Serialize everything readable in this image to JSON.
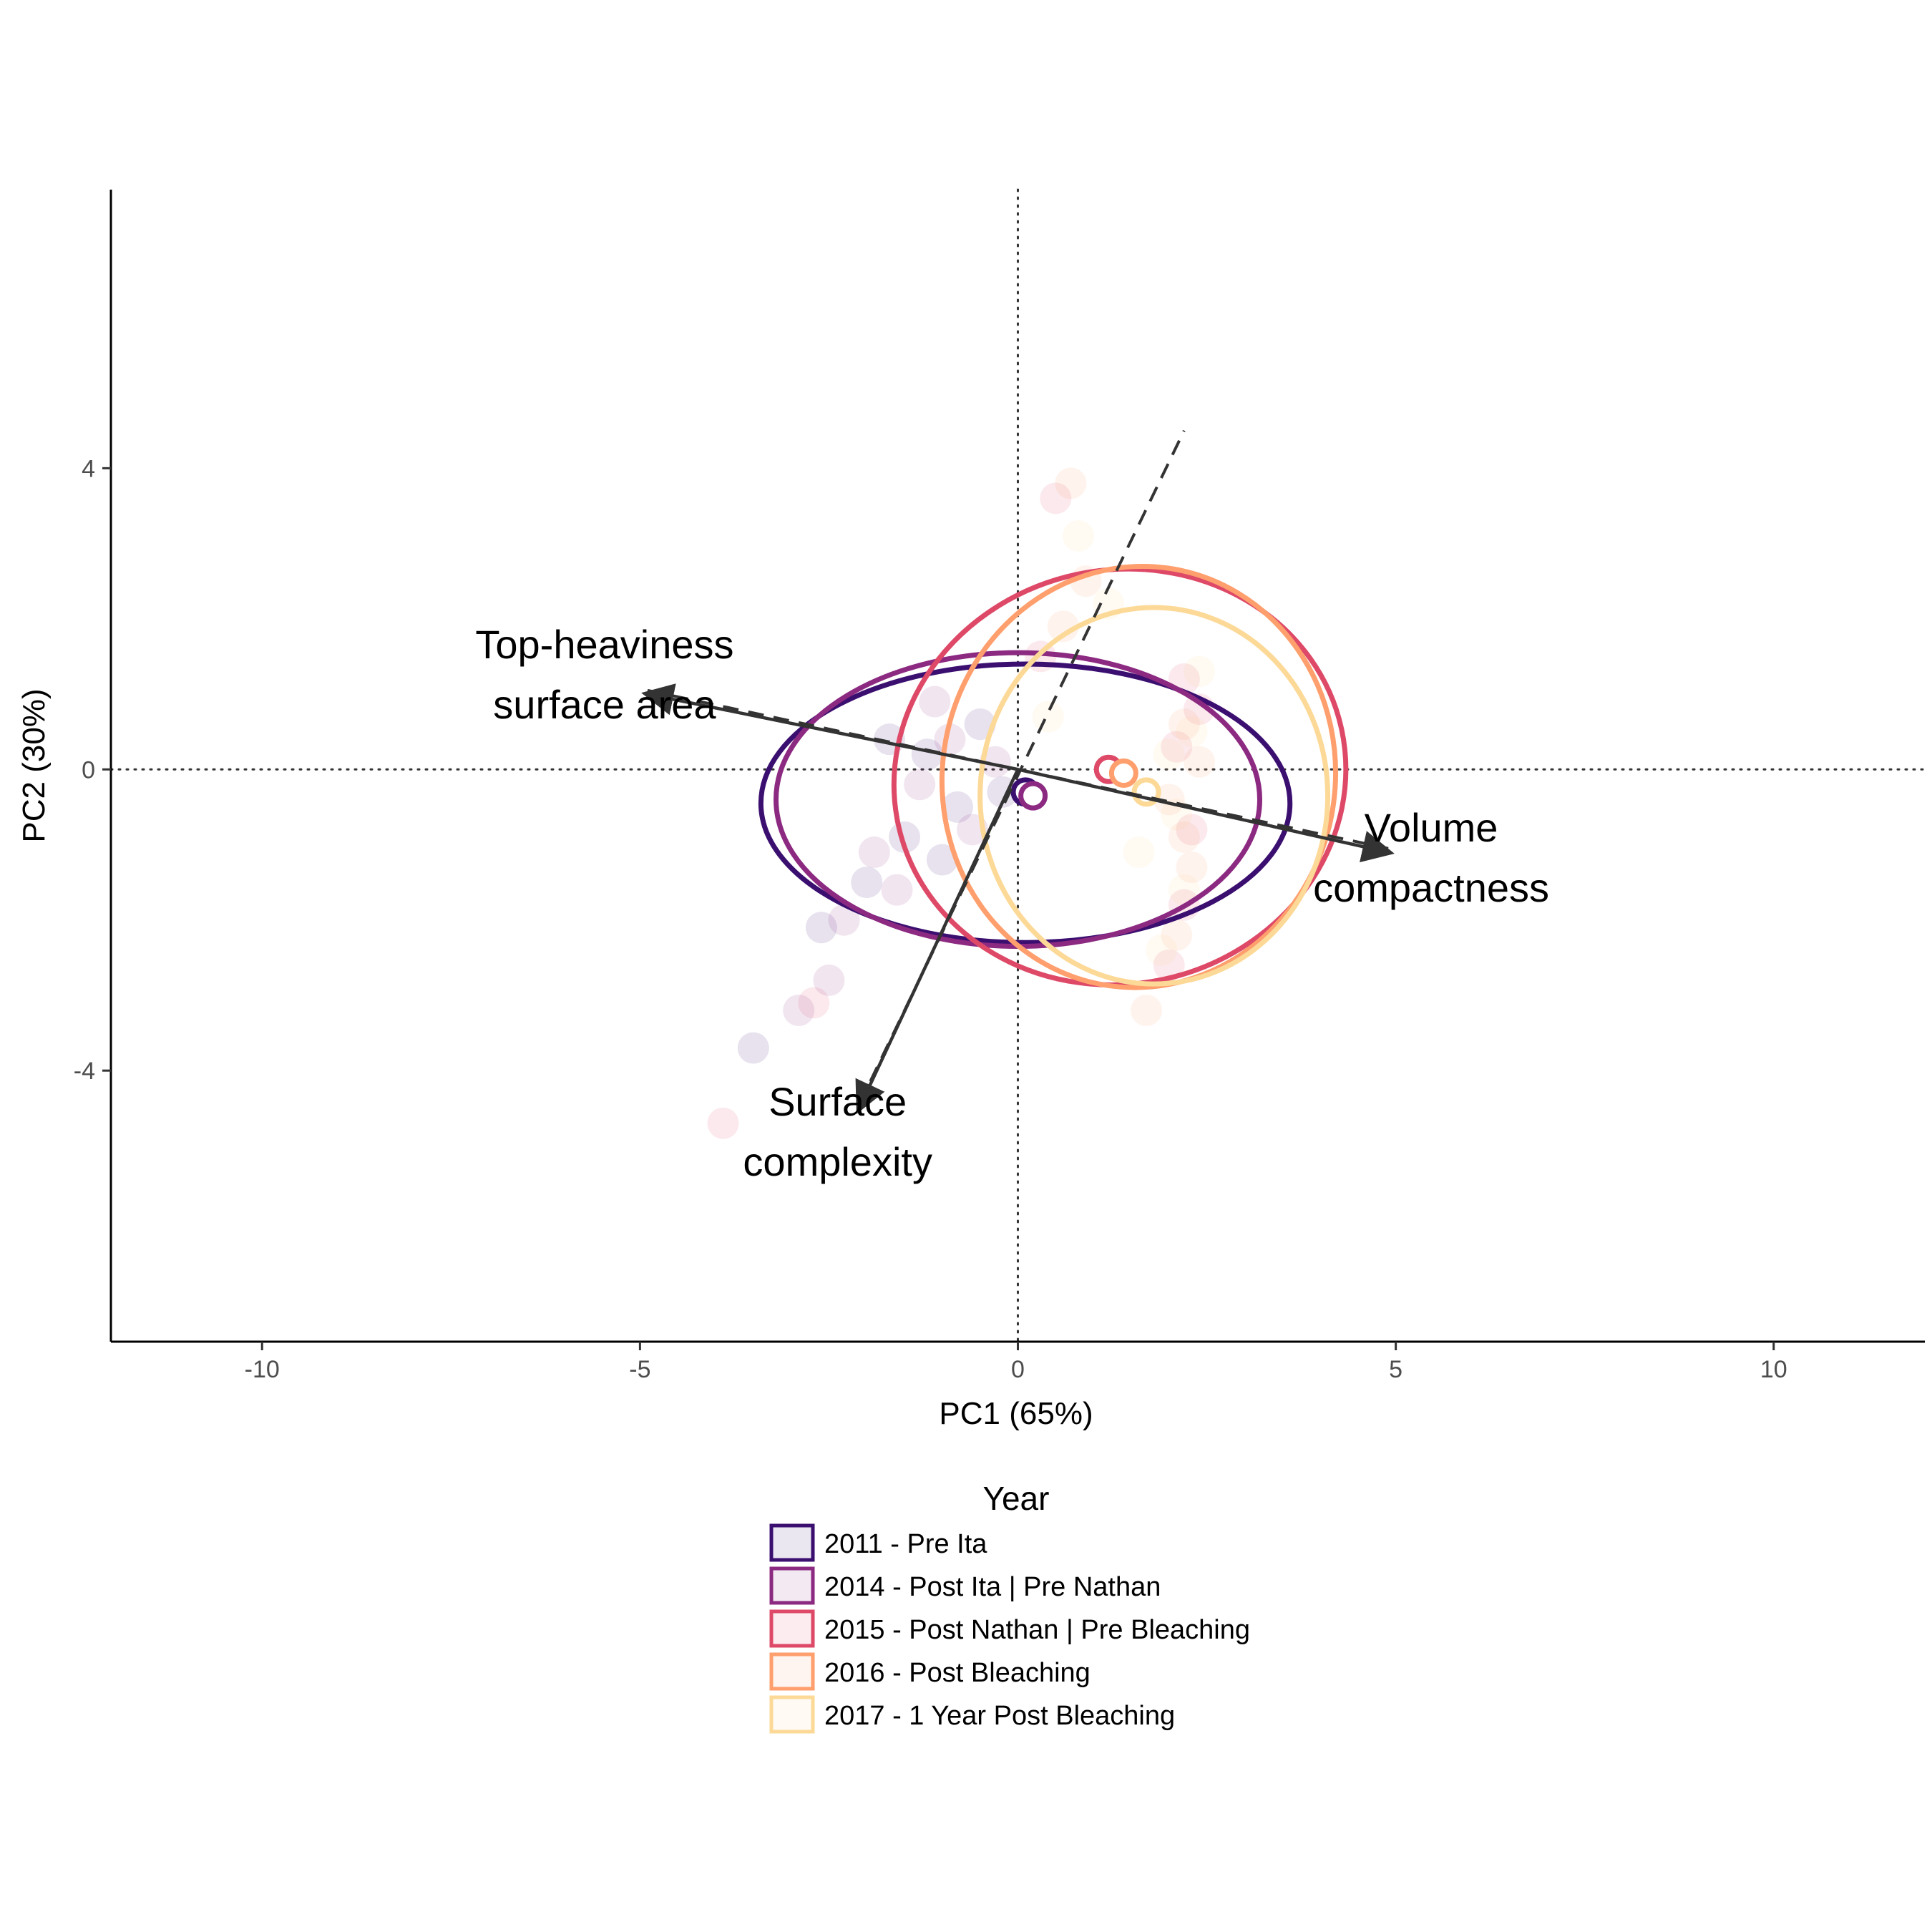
{
  "chart_data": {
    "type": "scatter",
    "title": "",
    "xlabel": "PC1 (65%)",
    "ylabel": "PC2 (30%)",
    "xlim": [
      -12,
      12
    ],
    "ylim": [
      -7.6,
      7.7
    ],
    "xticks": [
      -10,
      -5,
      0,
      5,
      10
    ],
    "xtick_labels": [
      "-10",
      "-5",
      "0",
      "5",
      "10"
    ],
    "yticks": [
      -4,
      0,
      4
    ],
    "ytick_labels": [
      "-4",
      "0",
      "4"
    ],
    "grid": false,
    "reference_lines": {
      "x": 0,
      "y": 0,
      "style": "dotted"
    },
    "legend": {
      "title": "Year",
      "placement": "bottom",
      "entries": [
        {
          "label": "2011 - Pre Ita",
          "color": "#3b0f70"
        },
        {
          "label": "2014 - Post Ita | Pre Nathan",
          "color": "#8c2981"
        },
        {
          "label": "2015 - Post Nathan | Pre Bleaching",
          "color": "#de4968"
        },
        {
          "label": "2016 - Post Bleaching",
          "color": "#fe9f6d"
        },
        {
          "label": "2017 - 1 Year Post Bleaching",
          "color": "#fcd997"
        }
      ]
    },
    "series": [
      {
        "name": "2011 - Pre Ita",
        "color": "#3b0f70",
        "centroid": [
          0.1,
          -0.3
        ],
        "ellipse": {
          "cx": 0.1,
          "cy": -0.45,
          "rx": 3.5,
          "ry": 1.85,
          "angle": 0
        },
        "points": [
          [
            -1.2,
            0.2
          ],
          [
            -0.8,
            -0.5
          ],
          [
            -1.5,
            -0.9
          ],
          [
            -2.0,
            -1.5
          ],
          [
            -0.5,
            0.6
          ],
          [
            -1.0,
            -1.2
          ],
          [
            -2.6,
            -2.1
          ],
          [
            -3.5,
            -3.7
          ],
          [
            -0.2,
            -0.3
          ],
          [
            -1.7,
            0.4
          ]
        ]
      },
      {
        "name": "2014 - Post Ita | Pre Nathan",
        "color": "#8c2981",
        "centroid": [
          0.2,
          -0.35
        ],
        "ellipse": {
          "cx": 0.0,
          "cy": -0.4,
          "rx": 3.2,
          "ry": 1.95,
          "angle": 0
        },
        "points": [
          [
            -0.9,
            0.4
          ],
          [
            -1.3,
            -0.2
          ],
          [
            -0.6,
            -0.8
          ],
          [
            -1.9,
            -1.1
          ],
          [
            -2.3,
            -2.0
          ],
          [
            -2.9,
            -3.2
          ],
          [
            -1.1,
            0.9
          ],
          [
            -0.3,
            0.1
          ],
          [
            -1.6,
            -1.6
          ],
          [
            -2.5,
            -2.8
          ]
        ]
      },
      {
        "name": "2015 - Post Nathan | Pre Bleaching",
        "color": "#de4968",
        "centroid": [
          1.2,
          0.0
        ],
        "ellipse": {
          "cx": 1.35,
          "cy": -0.1,
          "rx": 3.0,
          "ry": 2.75,
          "angle": -12
        },
        "points": [
          [
            2.2,
            1.2
          ],
          [
            2.1,
            0.3
          ],
          [
            2.3,
            -0.8
          ],
          [
            2.2,
            -1.8
          ],
          [
            0.5,
            3.6
          ],
          [
            2.0,
            -2.6
          ],
          [
            -3.9,
            -4.7
          ],
          [
            -2.7,
            -3.1
          ],
          [
            0.3,
            1.5
          ],
          [
            2.4,
            0.8
          ]
        ]
      },
      {
        "name": "2016 - Post Bleaching",
        "color": "#fe9f6d",
        "centroid": [
          1.4,
          -0.05
        ],
        "ellipse": {
          "cx": 1.6,
          "cy": -0.1,
          "rx": 2.6,
          "ry": 2.8,
          "angle": 8
        },
        "points": [
          [
            2.2,
            0.6
          ],
          [
            2.0,
            -0.4
          ],
          [
            2.3,
            -1.3
          ],
          [
            0.7,
            3.8
          ],
          [
            0.9,
            2.5
          ],
          [
            2.1,
            -2.2
          ],
          [
            1.7,
            -3.2
          ],
          [
            2.4,
            0.1
          ],
          [
            0.6,
            1.9
          ],
          [
            2.2,
            -0.9
          ]
        ]
      },
      {
        "name": "2017 - 1 Year Post Bleaching",
        "color": "#fcd997",
        "centroid": [
          1.7,
          -0.3
        ],
        "ellipse": {
          "cx": 1.8,
          "cy": -0.35,
          "rx": 2.3,
          "ry": 2.5,
          "angle": 0
        },
        "points": [
          [
            2.3,
            0.5
          ],
          [
            2.1,
            -0.6
          ],
          [
            2.2,
            -1.6
          ],
          [
            0.8,
            3.1
          ],
          [
            1.2,
            2.2
          ],
          [
            1.9,
            -2.4
          ],
          [
            2.4,
            1.3
          ],
          [
            0.4,
            0.7
          ],
          [
            2.0,
            0.2
          ],
          [
            1.6,
            -1.1
          ]
        ]
      }
    ],
    "loadings": [
      {
        "label_lines": [
          "Top-heaviness",
          "surface area"
        ],
        "x": -4.9,
        "y": 1.0
      },
      {
        "label_lines": [
          "Volume",
          "compactness"
        ],
        "x": 4.9,
        "y": -1.1
      },
      {
        "label_lines": [
          "Surface",
          "complexity"
        ],
        "x": -2.1,
        "y": -4.5
      }
    ],
    "dashed_axes": [
      {
        "from": [
          -4.9,
          1.05
        ],
        "to": [
          4.9,
          -1.05
        ]
      },
      {
        "from": [
          -2.1,
          -4.45
        ],
        "to": [
          2.2,
          4.5
        ]
      }
    ]
  }
}
